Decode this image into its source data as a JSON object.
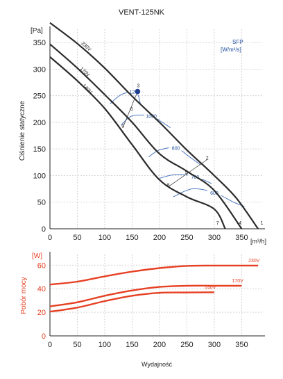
{
  "chart_data": [
    {
      "type": "line",
      "title": "VENT-125NK",
      "xlabel": "[m³/h]",
      "ylabel": "Ciśnienie statyczne",
      "y_unit": "[Pa]",
      "xlim": [
        0,
        390
      ],
      "ylim": [
        0,
        375
      ],
      "x_ticks": [
        0,
        50,
        100,
        150,
        200,
        250,
        300,
        350
      ],
      "y_ticks": [
        0,
        50,
        100,
        150,
        200,
        250,
        300,
        350
      ],
      "grid": true,
      "sfp_label": "SFP",
      "sfp_unit": "[W/m³/s]",
      "series": [
        {
          "name": "230V",
          "color": "#2b2b2b",
          "points": [
            [
              0,
              387
            ],
            [
              50,
              348
            ],
            [
              100,
              302
            ],
            [
              150,
              249
            ],
            [
              200,
              200
            ],
            [
              250,
              148
            ],
            [
              300,
              100
            ],
            [
              340,
              58
            ],
            [
              380,
              0
            ]
          ]
        },
        {
          "name": "170V",
          "color": "#2b2b2b",
          "points": [
            [
              0,
              347
            ],
            [
              50,
              302
            ],
            [
              100,
              252
            ],
            [
              150,
              200
            ],
            [
              200,
              141
            ],
            [
              250,
              108
            ],
            [
              300,
              72
            ],
            [
              350,
              0
            ]
          ]
        },
        {
          "name": "140V",
          "color": "#2b2b2b",
          "points": [
            [
              0,
              323
            ],
            [
              50,
              278
            ],
            [
              100,
              226
            ],
            [
              150,
              158
            ],
            [
              200,
              92
            ],
            [
              250,
              60
            ],
            [
              300,
              37
            ],
            [
              320,
              0
            ]
          ]
        }
      ],
      "sfp_curves": [
        {
          "label": "1200",
          "points": [
            [
              110,
              235
            ],
            [
              130,
              252
            ],
            [
              155,
              258
            ],
            [
              162,
              248
            ],
            [
              165,
              235
            ]
          ]
        },
        {
          "label": "1000",
          "points": [
            [
              130,
              195
            ],
            [
              150,
              212
            ],
            [
              185,
              212
            ],
            [
              205,
              200
            ],
            [
              220,
              190
            ]
          ]
        },
        {
          "label": "800",
          "points": [
            [
              180,
              135
            ],
            [
              200,
              148
            ],
            [
              230,
              152
            ],
            [
              255,
              135
            ],
            [
              275,
              120
            ]
          ]
        },
        {
          "label": "700",
          "points": [
            [
              200,
              95
            ],
            [
              230,
              102
            ],
            [
              265,
              98
            ],
            [
              295,
              85
            ]
          ]
        },
        {
          "label": "600",
          "points": [
            [
              225,
              60
            ],
            [
              260,
              75
            ],
            [
              300,
              68
            ],
            [
              335,
              50
            ],
            [
              355,
              42
            ]
          ]
        }
      ],
      "points": [
        {
          "label": "3",
          "x": 160,
          "y": 258,
          "highlight": true
        },
        {
          "label": "6",
          "x": 149,
          "y": 222
        },
        {
          "label": "9",
          "x": 133,
          "y": 190
        },
        {
          "label": "2",
          "x": 287,
          "y": 130
        },
        {
          "label": "5",
          "x": 249,
          "y": 103
        },
        {
          "label": "8",
          "x": 216,
          "y": 79
        },
        {
          "label": "1",
          "x": 387,
          "y": 8
        },
        {
          "label": "4",
          "x": 347,
          "y": 8
        },
        {
          "label": "7",
          "x": 306,
          "y": 8
        }
      ]
    },
    {
      "type": "line",
      "xlabel": "Wydajność",
      "ylabel": "Pobór mocy",
      "y_unit": "[W]",
      "xlim": [
        0,
        390
      ],
      "ylim": [
        0,
        69
      ],
      "x_ticks": [
        0,
        50,
        100,
        150,
        200,
        250,
        300,
        350
      ],
      "y_ticks": [
        0,
        20,
        40,
        60
      ],
      "grid": true,
      "series": [
        {
          "name": "230V",
          "color": "#e64023",
          "points": [
            [
              0,
              43.5
            ],
            [
              50,
              46
            ],
            [
              100,
              50.5
            ],
            [
              150,
              54.5
            ],
            [
              200,
              57.5
            ],
            [
              250,
              59.3
            ],
            [
              300,
              59.6
            ],
            [
              380,
              59.6
            ]
          ]
        },
        {
          "name": "170V",
          "color": "#e64023",
          "points": [
            [
              0,
              25
            ],
            [
              50,
              28.5
            ],
            [
              100,
              34
            ],
            [
              150,
              38.5
            ],
            [
              200,
              41.5
            ],
            [
              250,
              42.5
            ],
            [
              300,
              42.5
            ],
            [
              350,
              42.5
            ]
          ]
        },
        {
          "name": "140V",
          "color": "#e64023",
          "points": [
            [
              0,
              20.5
            ],
            [
              50,
              24
            ],
            [
              100,
              29.5
            ],
            [
              150,
              34
            ],
            [
              200,
              36.5
            ],
            [
              250,
              36.8
            ],
            [
              300,
              37
            ]
          ]
        }
      ]
    }
  ]
}
